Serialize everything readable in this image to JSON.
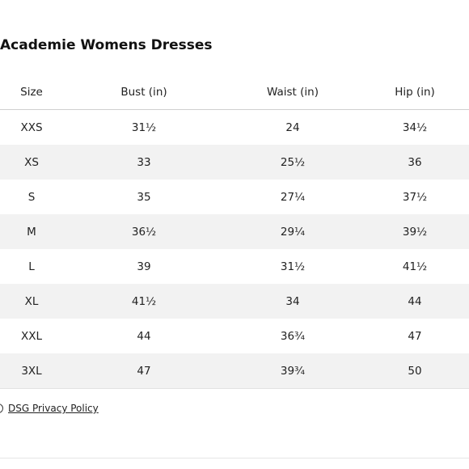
{
  "title": "Academie Womens Dresses",
  "table": {
    "headers": [
      "Size",
      "Bust (in)",
      "Waist (in)",
      "Hip (in)"
    ],
    "rows": [
      [
        "XXS",
        "31½",
        "24",
        "34½"
      ],
      [
        "XS",
        "33",
        "25½",
        "36"
      ],
      [
        "S",
        "35",
        "27¼",
        "37½"
      ],
      [
        "M",
        "36½",
        "29¼",
        "39½"
      ],
      [
        "L",
        "39",
        "31½",
        "41½"
      ],
      [
        "XL",
        "41½",
        "34",
        "44"
      ],
      [
        "XXL",
        "44",
        "36¾",
        "47"
      ],
      [
        "3XL",
        "47",
        "39¾",
        "50"
      ]
    ]
  },
  "footer": {
    "privacy_icon": "circle-icon",
    "privacy_link": "DSG Privacy Policy"
  },
  "colors": {
    "stripe": "#f2f2f2",
    "text": "#222222"
  }
}
